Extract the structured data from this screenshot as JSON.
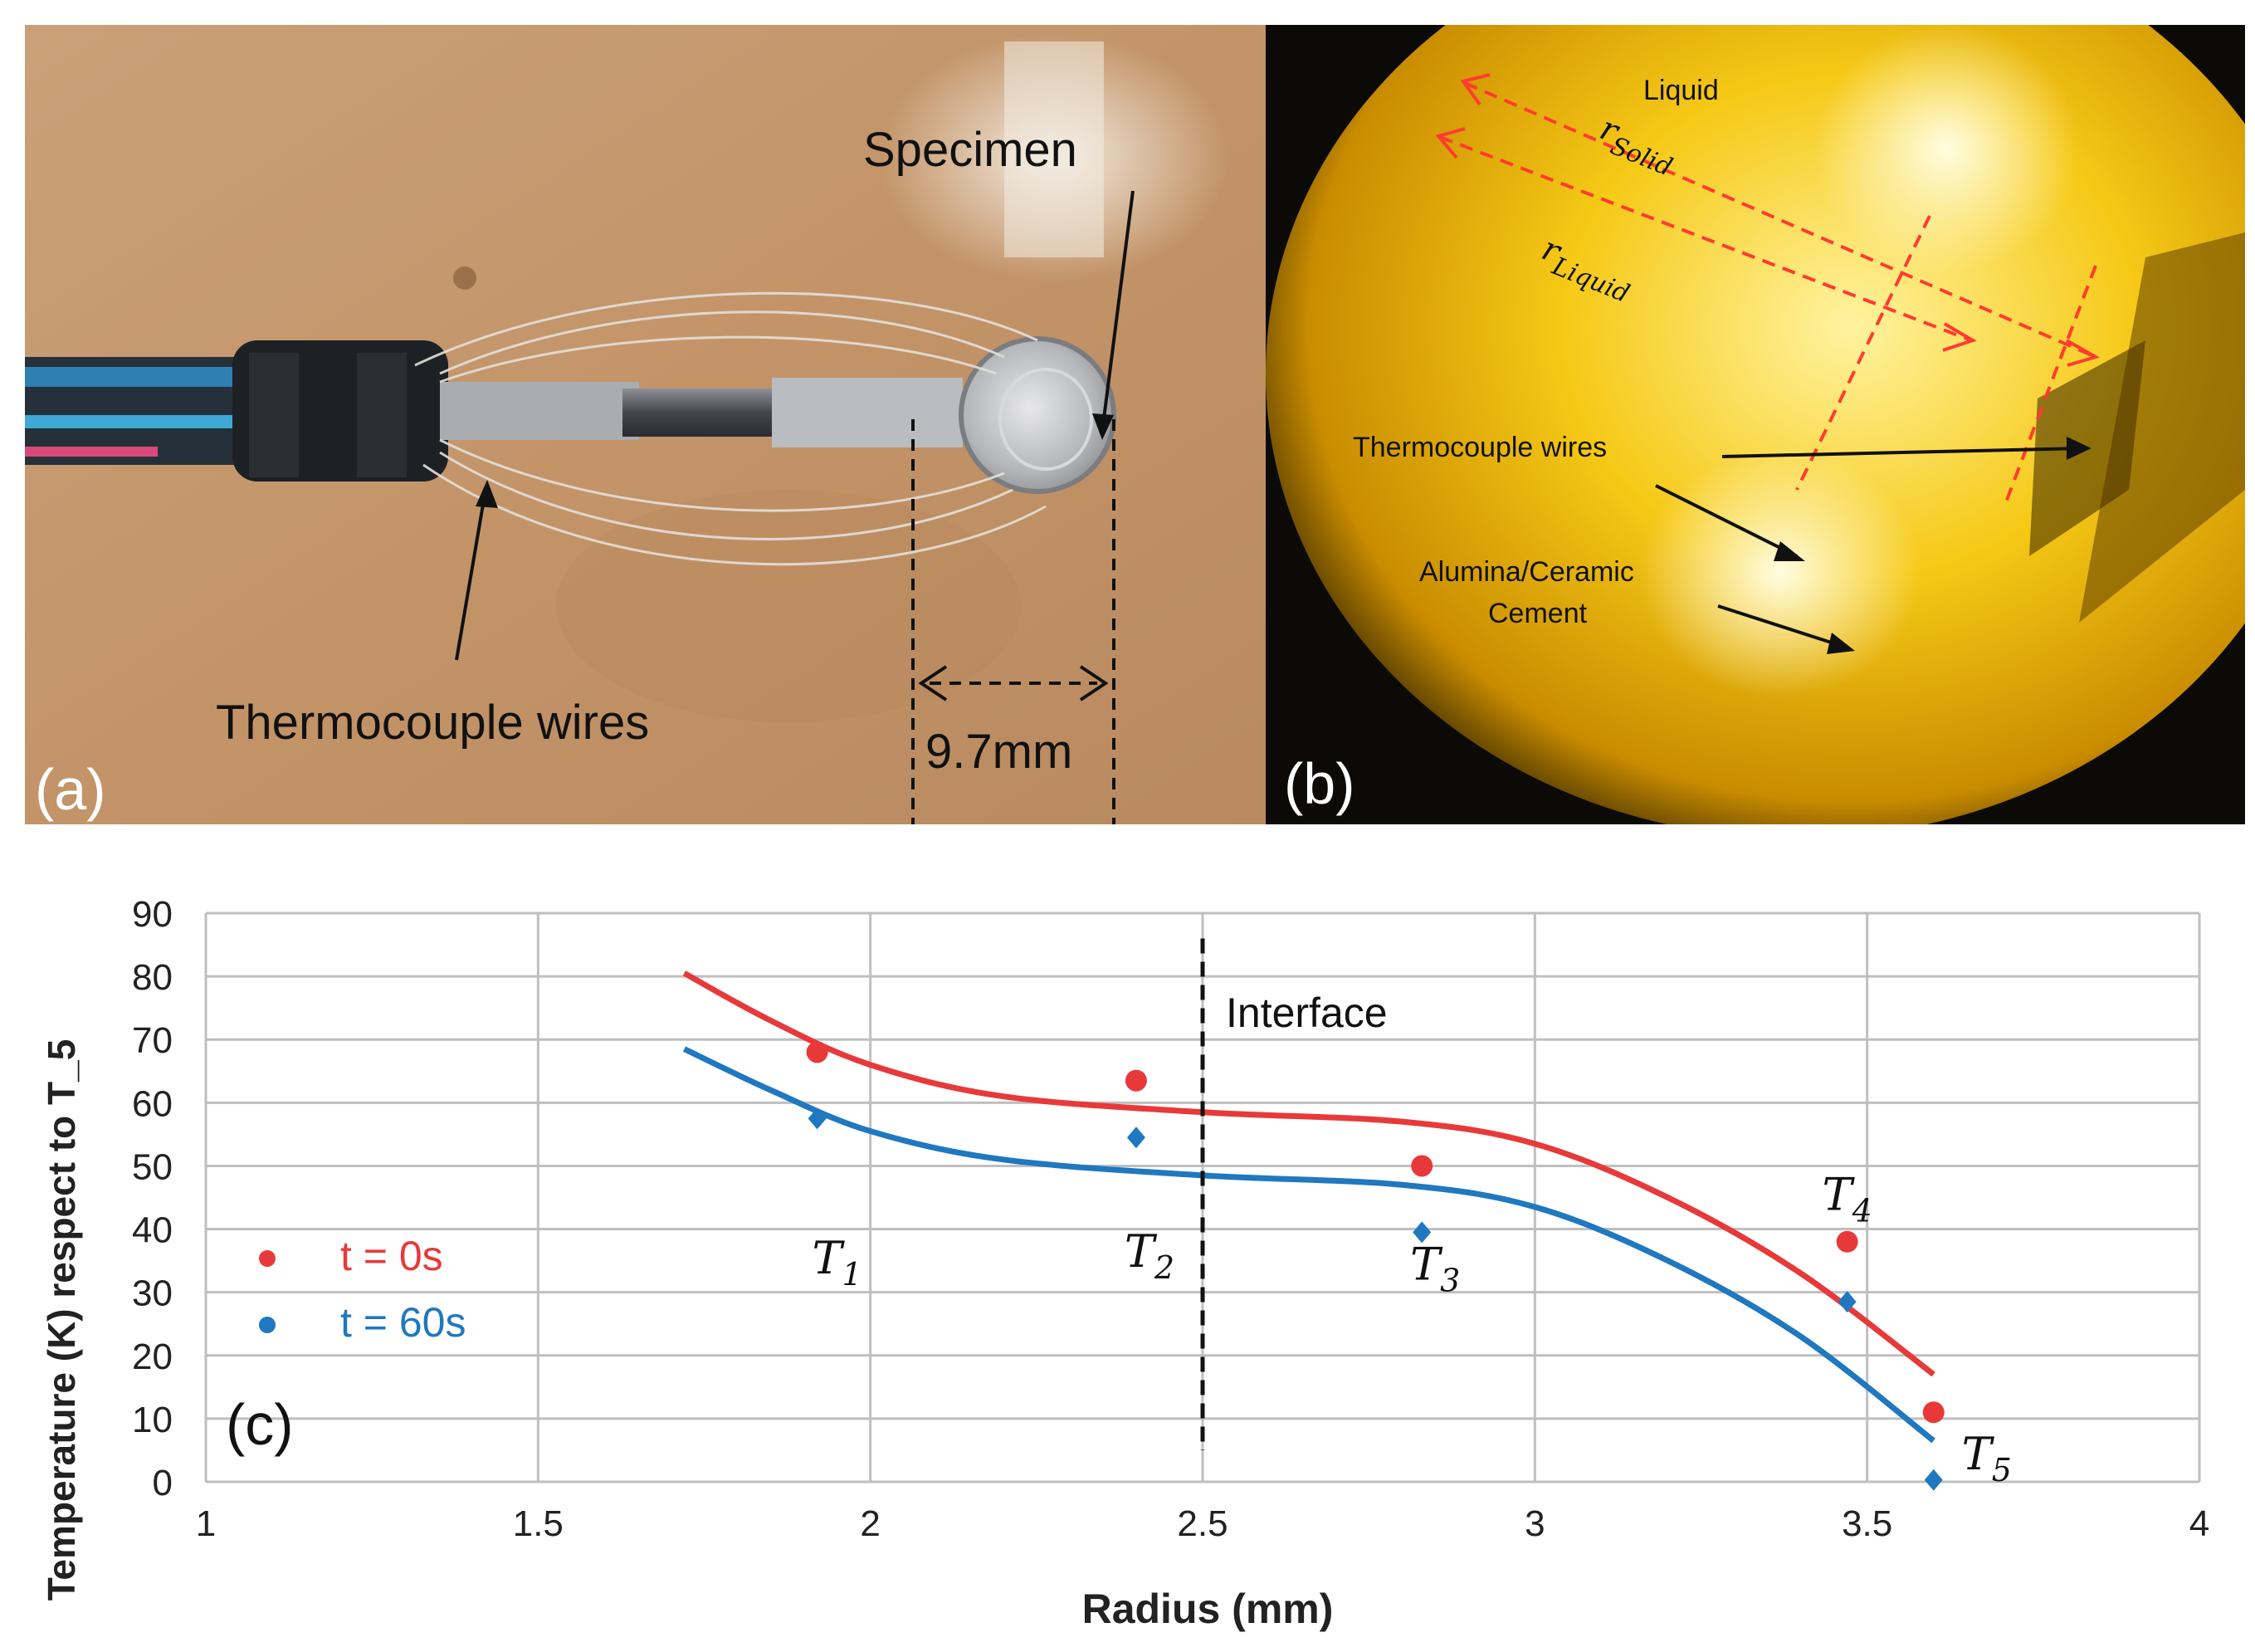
{
  "panel_a": {
    "label": "(a)",
    "specimen_label": "Specimen",
    "wires_label": "Thermocouple wires",
    "dimension_label": "9.7mm"
  },
  "panel_b": {
    "label": "(b)",
    "liquid_label": "Liquid",
    "r_solid_label": "r",
    "r_solid_sub": "Solid",
    "r_liquid_label": "r",
    "r_liquid_sub": "Liquid",
    "wires_label": "Thermocouple wires",
    "cement_label_1": "Alumina/Ceramic",
    "cement_label_2": "Cement"
  },
  "panel_c": {
    "label": "(c)",
    "interface_label": "Interface"
  },
  "colors": {
    "red": "#e8393a",
    "blue": "#1f78c0",
    "grid": "#bfbfbf",
    "background_a": "#c49a6c",
    "background_b": "#e8b400"
  },
  "chart_data": {
    "type": "scatter",
    "xlabel": "Radius (mm)",
    "ylabel": "Temperature (K)  respect to T_5",
    "xlim": [
      1,
      4
    ],
    "ylim": [
      0,
      90
    ],
    "xticks": [
      "1",
      "1.5",
      "2",
      "2.5",
      "3",
      "3.5",
      "4"
    ],
    "yticks": [
      "0",
      "10",
      "20",
      "30",
      "40",
      "50",
      "60",
      "70",
      "80",
      "90"
    ],
    "grid": true,
    "legend_position": "left",
    "interface_x": 2.5,
    "series": [
      {
        "name": "t = 0s",
        "marker": "circle",
        "color": "#e8393a",
        "points": [
          {
            "x": 1.92,
            "y": 68
          },
          {
            "x": 2.4,
            "y": 63.5
          },
          {
            "x": 2.83,
            "y": 50
          },
          {
            "x": 3.47,
            "y": 38
          },
          {
            "x": 3.6,
            "y": 11
          }
        ],
        "fit": [
          {
            "x": 1.72,
            "y": 80.5
          },
          {
            "x": 1.85,
            "y": 73
          },
          {
            "x": 2.0,
            "y": 66
          },
          {
            "x": 2.2,
            "y": 61
          },
          {
            "x": 2.5,
            "y": 58.5
          },
          {
            "x": 2.8,
            "y": 57
          },
          {
            "x": 3.0,
            "y": 53.5
          },
          {
            "x": 3.2,
            "y": 45
          },
          {
            "x": 3.4,
            "y": 33
          },
          {
            "x": 3.6,
            "y": 17
          }
        ]
      },
      {
        "name": "t = 60s",
        "marker": "diamond",
        "color": "#1f78c0",
        "points": [
          {
            "x": 1.92,
            "y": 57.5
          },
          {
            "x": 2.4,
            "y": 54.5
          },
          {
            "x": 2.83,
            "y": 39.5
          },
          {
            "x": 3.47,
            "y": 28.5
          },
          {
            "x": 3.6,
            "y": 0.3
          }
        ],
        "fit": [
          {
            "x": 1.72,
            "y": 68.5
          },
          {
            "x": 1.85,
            "y": 62
          },
          {
            "x": 2.0,
            "y": 55.5
          },
          {
            "x": 2.2,
            "y": 51
          },
          {
            "x": 2.5,
            "y": 48.5
          },
          {
            "x": 2.8,
            "y": 47
          },
          {
            "x": 3.0,
            "y": 43.5
          },
          {
            "x": 3.2,
            "y": 35
          },
          {
            "x": 3.4,
            "y": 23
          },
          {
            "x": 3.6,
            "y": 6.5
          }
        ]
      }
    ],
    "annotations": [
      {
        "text": "T",
        "sub": "1",
        "x": 1.95,
        "y": 33
      },
      {
        "text": "T",
        "sub": "2",
        "x": 2.42,
        "y": 34
      },
      {
        "text": "T",
        "sub": "3",
        "x": 2.85,
        "y": 32
      },
      {
        "text": "T",
        "sub": "4",
        "x": 3.47,
        "y": 43
      },
      {
        "text": "T",
        "sub": "5",
        "x": 3.68,
        "y": 2
      }
    ]
  }
}
